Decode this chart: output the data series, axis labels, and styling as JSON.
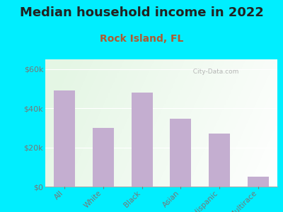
{
  "title": "Median household income in 2022",
  "subtitle": "Rock Island, FL",
  "categories": [
    "All",
    "White",
    "Black",
    "Asian",
    "Hispanic",
    "Multirace"
  ],
  "values": [
    49000,
    30000,
    48000,
    34500,
    27000,
    5000
  ],
  "bar_color": "#c4aed0",
  "title_fontsize": 13,
  "title_color": "#222222",
  "subtitle_color": "#b05a30",
  "subtitle_fontsize": 10,
  "tick_color": "#777777",
  "bg_outer": "#00eeff",
  "ylim": [
    0,
    65000
  ],
  "yticks": [
    0,
    20000,
    40000,
    60000
  ],
  "ytick_labels": [
    "$0",
    "$20k",
    "$40k",
    "$60k"
  ],
  "watermark": "  City-Data.com"
}
